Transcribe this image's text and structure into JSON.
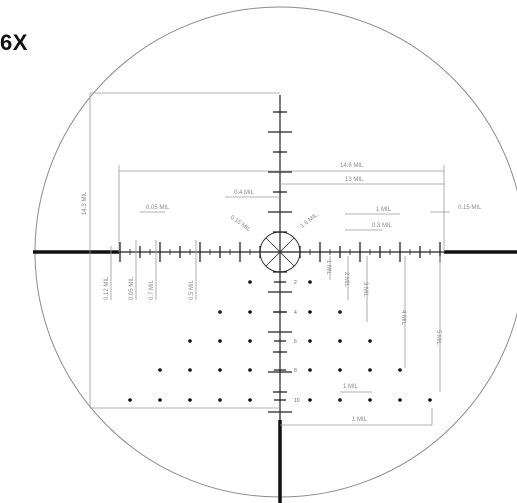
{
  "title": "6X",
  "labels": {
    "width_14_6": "14.6 MIL",
    "width_13": "13 MIL",
    "height_14_3": "14.3 MIL",
    "h_0_4": "0.4 MIL",
    "h_0_05_left": "0.05 MIL",
    "h_1_right": "1 MIL",
    "h_0_3": "0.3 MIL",
    "h_0_15": "0.15 MIL",
    "diag_0_15": "0.15 MIL",
    "diag_1_6": "1.6 MIL",
    "v_0_12": "0.12 MIL",
    "v_0_05": "0.05 MIL",
    "v_0_7": "0.7 MIL",
    "v_0_5": "0.5 MIL",
    "v_1": "1 MIL",
    "v_2": "2 MIL",
    "v_3": "3 MIL",
    "v_4": "4 MIL",
    "v_5": "5 MIL",
    "b_1_small": "1 MIL",
    "b_1_large": "1 MIL"
  },
  "row_numbers": [
    "2",
    "4",
    "6",
    "8",
    "10"
  ]
}
